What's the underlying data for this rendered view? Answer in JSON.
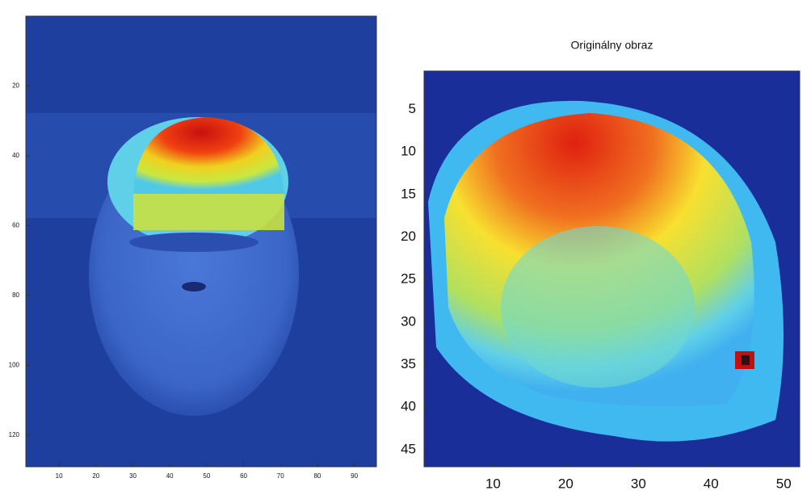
{
  "chart_data": [
    {
      "type": "image",
      "xlim": [
        1,
        96
      ],
      "ylim": [
        0,
        129
      ],
      "y_reversed": true,
      "xticks": [
        10,
        20,
        30,
        40,
        50,
        60,
        70,
        80,
        90
      ],
      "yticks": [
        20,
        40,
        60,
        80,
        100,
        120
      ]
    },
    {
      "type": "image",
      "title": "Originálny obraz",
      "xlim": [
        0.5,
        52.2
      ],
      "ylim": [
        0.5,
        47
      ],
      "y_reversed": true,
      "xticks": [
        10,
        20,
        30,
        40,
        50
      ],
      "yticks": [
        5,
        10,
        15,
        20,
        25,
        30,
        35,
        40,
        45
      ]
    }
  ]
}
